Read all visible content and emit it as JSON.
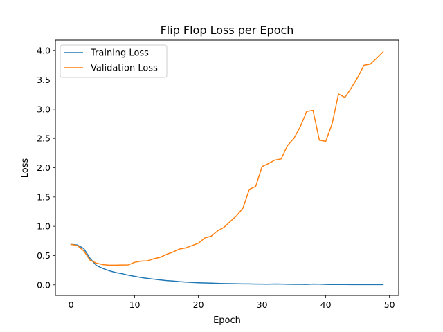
{
  "chart_data": {
    "type": "line",
    "title": "Flip Flop Loss per Epoch",
    "xlabel": "Epoch",
    "ylabel": "Loss",
    "xlim": [
      -2.45,
      51.45
    ],
    "ylim": [
      -0.18,
      4.18
    ],
    "xticks": [
      0,
      10,
      20,
      30,
      40,
      50
    ],
    "yticks": [
      0.0,
      0.5,
      1.0,
      1.5,
      2.0,
      2.5,
      3.0,
      3.5,
      4.0
    ],
    "xtick_labels": [
      "0",
      "10",
      "20",
      "30",
      "40",
      "50"
    ],
    "ytick_labels": [
      "0.0",
      "0.5",
      "1.0",
      "1.5",
      "2.0",
      "2.5",
      "3.0",
      "3.5",
      "4.0"
    ],
    "grid": false,
    "legend_position": "top-left",
    "x": [
      0,
      1,
      2,
      3,
      4,
      5,
      6,
      7,
      8,
      9,
      10,
      11,
      12,
      13,
      14,
      15,
      16,
      17,
      18,
      19,
      20,
      21,
      22,
      23,
      24,
      25,
      26,
      27,
      28,
      29,
      30,
      31,
      32,
      33,
      34,
      35,
      36,
      37,
      38,
      39,
      40,
      41,
      42,
      43,
      44,
      45,
      46,
      47,
      48,
      49
    ],
    "series": [
      {
        "name": "Training Loss",
        "color": "#1f77b4",
        "values": [
          0.69,
          0.68,
          0.62,
          0.45,
          0.33,
          0.28,
          0.24,
          0.21,
          0.19,
          0.165,
          0.145,
          0.125,
          0.11,
          0.097,
          0.085,
          0.073,
          0.065,
          0.055,
          0.047,
          0.042,
          0.036,
          0.032,
          0.029,
          0.025,
          0.023,
          0.021,
          0.019,
          0.017,
          0.016,
          0.014,
          0.013,
          0.012,
          0.015,
          0.013,
          0.01,
          0.009,
          0.009,
          0.008,
          0.014,
          0.012,
          0.008,
          0.006,
          0.006,
          0.006,
          0.005,
          0.005,
          0.005,
          0.005,
          0.004,
          0.004
        ]
      },
      {
        "name": "Validation Loss",
        "color": "#ff7f0e",
        "values": [
          0.69,
          0.67,
          0.58,
          0.42,
          0.37,
          0.345,
          0.335,
          0.335,
          0.338,
          0.34,
          0.385,
          0.405,
          0.41,
          0.445,
          0.47,
          0.52,
          0.56,
          0.61,
          0.63,
          0.67,
          0.71,
          0.8,
          0.83,
          0.92,
          0.98,
          1.08,
          1.18,
          1.31,
          1.63,
          1.68,
          2.02,
          2.07,
          2.13,
          2.15,
          2.38,
          2.5,
          2.7,
          2.96,
          2.98,
          2.47,
          2.45,
          2.75,
          3.26,
          3.2,
          3.36,
          3.54,
          3.75,
          3.77,
          3.87,
          3.98
        ]
      }
    ]
  }
}
